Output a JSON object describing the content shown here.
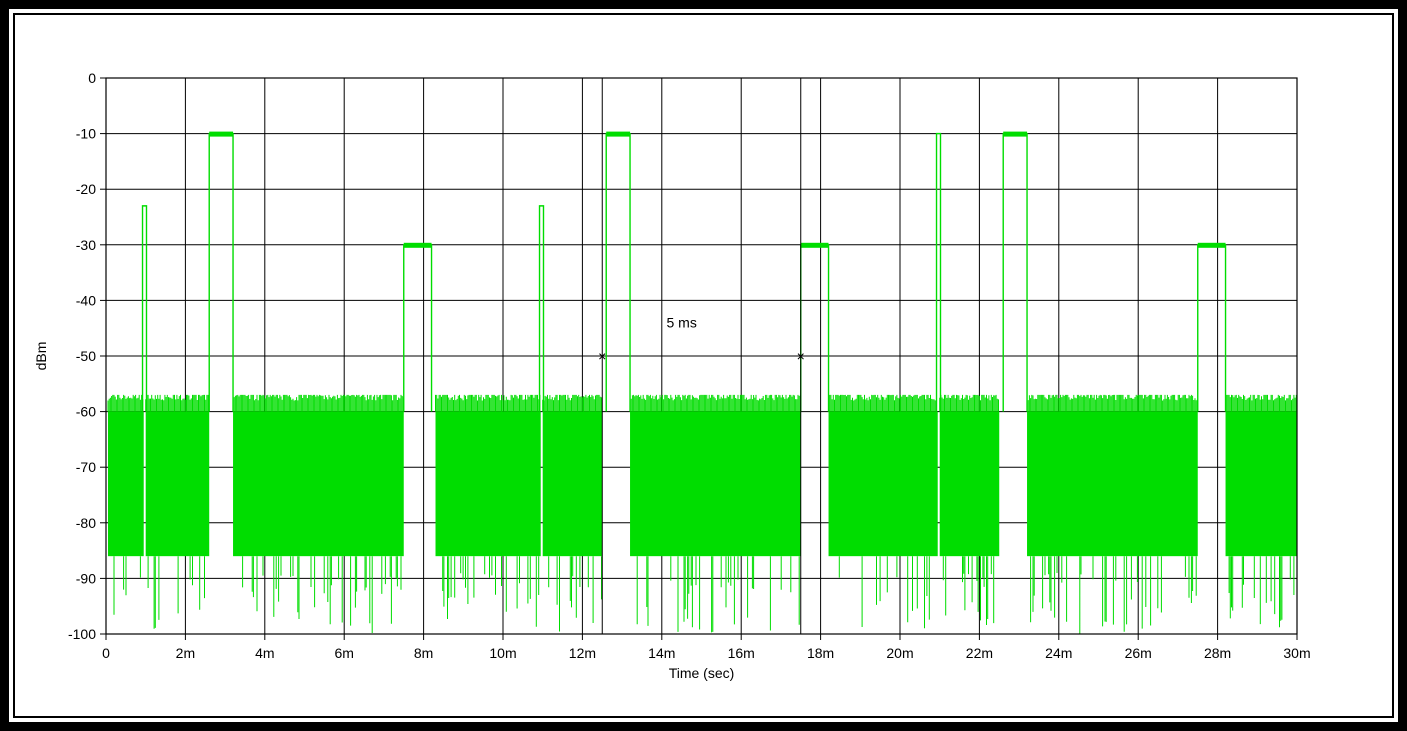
{
  "chart_data": {
    "type": "line",
    "title": "",
    "xlabel": "Time (sec)",
    "ylabel": "dBm",
    "xlim": [
      0,
      30
    ],
    "ylim": [
      -100,
      0
    ],
    "grid": true,
    "x_unit_note": "ms",
    "x_tick_labels": [
      "0",
      "2m",
      "4m",
      "6m",
      "8m",
      "10m",
      "12m",
      "14m",
      "16m",
      "18m",
      "20m",
      "22m",
      "24m",
      "26m",
      "28m",
      "30m"
    ],
    "y_tick_labels": [
      "0",
      "-10",
      "-20",
      "-30",
      "-40",
      "-50",
      "-60",
      "-70",
      "-80",
      "-90",
      "-100"
    ],
    "series": [
      {
        "color": "#00dd00",
        "noise_floor": {
          "top": -60,
          "upper_band_bottom": -86,
          "floor": -100
        },
        "noise_segments": [
          [
            0.05,
            0.95
          ],
          [
            1.0,
            2.6
          ],
          [
            3.2,
            7.5
          ],
          [
            8.3,
            10.95
          ],
          [
            11.0,
            12.5
          ],
          [
            13.2,
            17.5
          ],
          [
            18.2,
            20.95
          ],
          [
            21.0,
            22.5
          ],
          [
            23.2,
            27.5
          ],
          [
            28.2,
            30.0
          ]
        ],
        "pulses": [
          {
            "start": 0.92,
            "end": 1.02,
            "level": -23
          },
          {
            "start": 2.6,
            "end": 3.2,
            "level": -10
          },
          {
            "start": 7.5,
            "end": 8.2,
            "level": -30
          },
          {
            "start": 10.92,
            "end": 11.02,
            "level": -23
          },
          {
            "start": 12.6,
            "end": 13.2,
            "level": -10
          },
          {
            "start": 17.5,
            "end": 18.2,
            "level": -30
          },
          {
            "start": 20.92,
            "end": 21.02,
            "level": -10
          },
          {
            "start": 22.6,
            "end": 23.2,
            "level": -10
          },
          {
            "start": 27.5,
            "end": 28.2,
            "level": -30
          }
        ]
      }
    ],
    "markers": [
      {
        "x": 12.5,
        "y": -50,
        "symbol": "×"
      },
      {
        "x": 17.5,
        "y": -50,
        "symbol": "×"
      }
    ],
    "cursor_lines": [
      12.5,
      17.5
    ],
    "annotation": {
      "text": "5 ms",
      "x": 15.0,
      "y": -44
    }
  }
}
